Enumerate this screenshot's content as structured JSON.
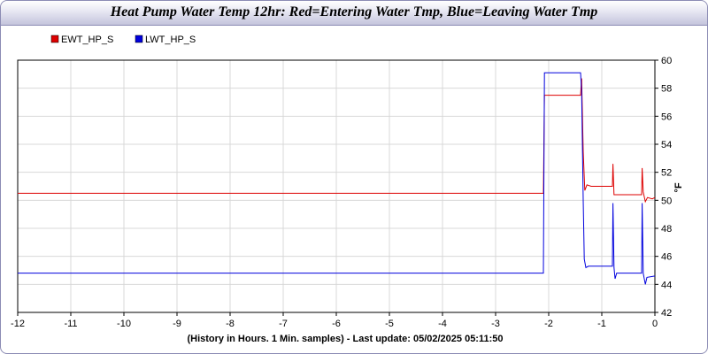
{
  "chart_data": {
    "type": "line",
    "title": "Heat Pump Water Temp 12hr: Red=Entering Water Tmp, Blue=Leaving Water Tmp",
    "xlabel": "(History in Hours. 1 Min. samples) - Last update: 05/02/2025 05:11:50",
    "ylabel": "°F",
    "xlim": [
      -12,
      0
    ],
    "ylim": [
      42,
      60
    ],
    "x_ticks": [
      "-12",
      "-11",
      "-10",
      "-9",
      "-8",
      "-7",
      "-6",
      "-5",
      "-4",
      "-3",
      "-2",
      "-1",
      "0"
    ],
    "y_ticks": [
      "42",
      "44",
      "46",
      "48",
      "50",
      "52",
      "54",
      "56",
      "58",
      "60"
    ],
    "grid": true,
    "legend_position": "top-left",
    "series": [
      {
        "name": "EWT_HP_S",
        "color": "#dd0000",
        "points": [
          [
            -12,
            50.5
          ],
          [
            -2.1,
            50.5
          ],
          [
            -2.08,
            57.5
          ],
          [
            -1.4,
            57.5
          ],
          [
            -1.38,
            58.7
          ],
          [
            -1.35,
            53.5
          ],
          [
            -1.32,
            50.7
          ],
          [
            -1.28,
            51.1
          ],
          [
            -1.2,
            51.0
          ],
          [
            -0.8,
            51.0
          ],
          [
            -0.79,
            52.6
          ],
          [
            -0.77,
            50.4
          ],
          [
            -0.75,
            50.4
          ],
          [
            -0.25,
            50.4
          ],
          [
            -0.24,
            52.3
          ],
          [
            -0.22,
            50.6
          ],
          [
            -0.18,
            49.9
          ],
          [
            -0.14,
            50.2
          ],
          [
            -0.05,
            50.1
          ],
          [
            0,
            50.2
          ]
        ]
      },
      {
        "name": "LWT_HP_S",
        "color": "#0000dd",
        "points": [
          [
            -12,
            44.8
          ],
          [
            -2.1,
            44.8
          ],
          [
            -2.08,
            59.1
          ],
          [
            -1.4,
            59.1
          ],
          [
            -1.38,
            57.8
          ],
          [
            -1.35,
            50.0
          ],
          [
            -1.33,
            45.8
          ],
          [
            -1.3,
            45.2
          ],
          [
            -1.25,
            45.3
          ],
          [
            -0.8,
            45.3
          ],
          [
            -0.79,
            49.8
          ],
          [
            -0.77,
            45.2
          ],
          [
            -0.75,
            44.4
          ],
          [
            -0.72,
            44.8
          ],
          [
            -0.25,
            44.8
          ],
          [
            -0.24,
            49.8
          ],
          [
            -0.22,
            44.8
          ],
          [
            -0.18,
            44.0
          ],
          [
            -0.15,
            44.5
          ],
          [
            0,
            44.6
          ]
        ]
      }
    ]
  }
}
